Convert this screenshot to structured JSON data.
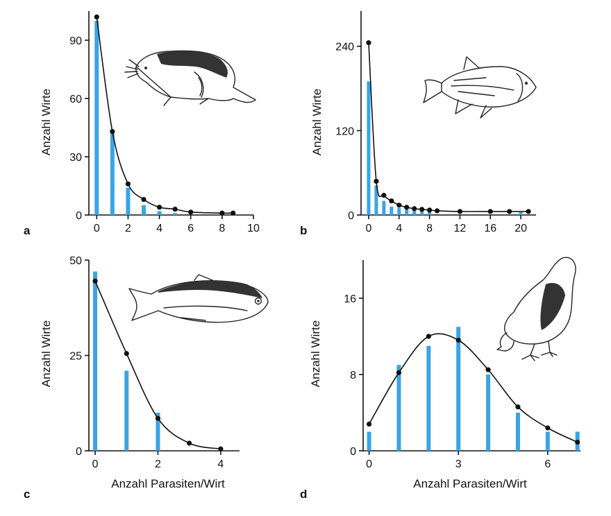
{
  "figure": {
    "xlabel_shared": "Anzahl Parasiten/Wirt"
  },
  "chart_data": [
    {
      "id": "a",
      "type": "bar",
      "panel_label": "a",
      "animal": "rodent",
      "xlabel": "",
      "ylabel": "Anzahl Wirte",
      "xlim": [
        -0.5,
        10
      ],
      "ylim": [
        0,
        105
      ],
      "xticks": [
        0,
        2,
        4,
        6,
        8,
        10
      ],
      "yticks": [
        0,
        30,
        60,
        90
      ],
      "bars": {
        "x": [
          0,
          1,
          2,
          3,
          4,
          5
        ],
        "values": [
          100,
          42,
          14,
          5,
          2,
          1
        ]
      },
      "fit": {
        "x": [
          0,
          1,
          2,
          3,
          4,
          5,
          6,
          8,
          8.7
        ],
        "values": [
          102,
          43,
          16,
          8,
          4,
          3,
          1.5,
          1,
          1
        ]
      }
    },
    {
      "id": "b",
      "type": "bar",
      "panel_label": "b",
      "animal": "carp-fish",
      "xlabel": "",
      "ylabel": "Anzahl Wirte",
      "xlim": [
        -1,
        22
      ],
      "ylim": [
        0,
        290
      ],
      "xticks": [
        0,
        4,
        8,
        12,
        16,
        20
      ],
      "yticks": [
        0,
        120,
        240
      ],
      "bars": {
        "x": [
          0,
          1,
          2,
          3,
          4,
          5,
          6,
          7,
          8,
          20
        ],
        "values": [
          190,
          42,
          20,
          12,
          10,
          8,
          6,
          5,
          4,
          4
        ]
      },
      "fit": {
        "x": [
          0,
          1,
          2,
          3,
          4,
          5,
          6,
          7,
          8,
          9,
          12,
          16,
          18.5,
          21
        ],
        "values": [
          245,
          48,
          28,
          20,
          14,
          11,
          9,
          8,
          7,
          6,
          5,
          5,
          5,
          5
        ]
      }
    },
    {
      "id": "c",
      "type": "bar",
      "panel_label": "c",
      "animal": "tetra-fish",
      "xlabel": "Anzahl Parasiten/Wirt",
      "ylabel": "Anzahl Wirte",
      "xlim": [
        -0.2,
        4.6
      ],
      "ylim": [
        0,
        50
      ],
      "xticks": [
        0,
        2,
        4
      ],
      "yticks": [
        0,
        25,
        50
      ],
      "bars": {
        "x": [
          0,
          1,
          2
        ],
        "values": [
          47,
          21,
          10
        ]
      },
      "fit": {
        "x": [
          0,
          1,
          2,
          3,
          4
        ],
        "values": [
          44.5,
          25.5,
          8.5,
          2,
          0.5
        ]
      }
    },
    {
      "id": "d",
      "type": "bar",
      "panel_label": "d",
      "animal": "chicken",
      "xlabel": "Anzahl Parasiten/Wirt",
      "ylabel": "Anzahl Wirte",
      "xlim": [
        -0.2,
        7.1
      ],
      "ylim": [
        0,
        20
      ],
      "xticks": [
        0,
        3,
        6
      ],
      "yticks": [
        0,
        8,
        16
      ],
      "bars": {
        "x": [
          0,
          1,
          2,
          3,
          4,
          5,
          6,
          7
        ],
        "values": [
          2,
          9,
          11,
          13,
          8,
          4,
          2,
          2
        ]
      },
      "fit": {
        "x": [
          0,
          1,
          2,
          3,
          4,
          5,
          6,
          7
        ],
        "values": [
          2.8,
          8.2,
          12,
          11.6,
          8.5,
          4.6,
          2.4,
          0.9
        ]
      }
    }
  ]
}
